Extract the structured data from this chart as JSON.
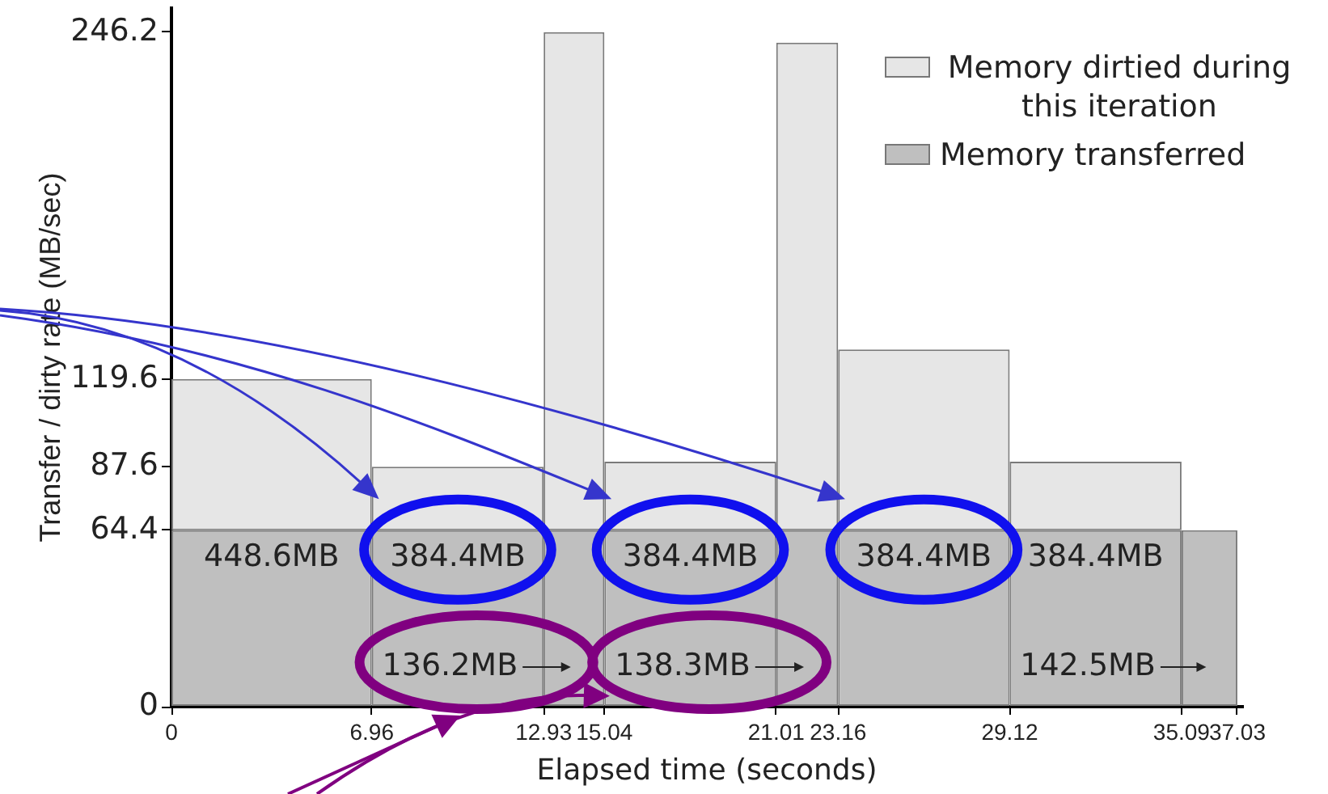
{
  "chart_data": {
    "type": "histogram",
    "xlabel": "Elapsed time (seconds)",
    "ylabel": "Transfer / dirty rate (MB/sec)",
    "bins": [
      0,
      6.96,
      12.93,
      15.04,
      21.01,
      23.16,
      29.12,
      35.09,
      37.03
    ],
    "series": [
      {
        "name": "Memory dirtied during this iteration",
        "color": "#e6e6e6",
        "base": [
          64.4,
          64.4,
          64.4,
          64.4,
          64.4,
          64.4,
          64.4,
          null
        ],
        "values": [
          55.2,
          23.2,
          181.8,
          25,
          178,
          66,
          25,
          null
        ]
      },
      {
        "name": "Memory transferred",
        "color": "#bfbfbf",
        "values": [
          64.4,
          64.4,
          64.4,
          64.4,
          64.4,
          64.4,
          64.4,
          64.4
        ]
      }
    ],
    "xlim": [
      0,
      37.2
    ],
    "xticks": [
      0,
      6.96,
      12.93,
      15.04,
      21.01,
      23.16,
      29.12,
      35.09,
      37.03
    ],
    "ylim": [
      0,
      255
    ],
    "yticks": [
      0,
      64.4,
      87.6,
      119.6,
      246.2
    ],
    "legend": "top right",
    "annotations": [
      "448.6MB",
      "384.4MB",
      "136.2MB",
      "384.4MB",
      "138.3MB",
      "384.4MB",
      "384.4MB",
      "142.5MB"
    ]
  }
}
